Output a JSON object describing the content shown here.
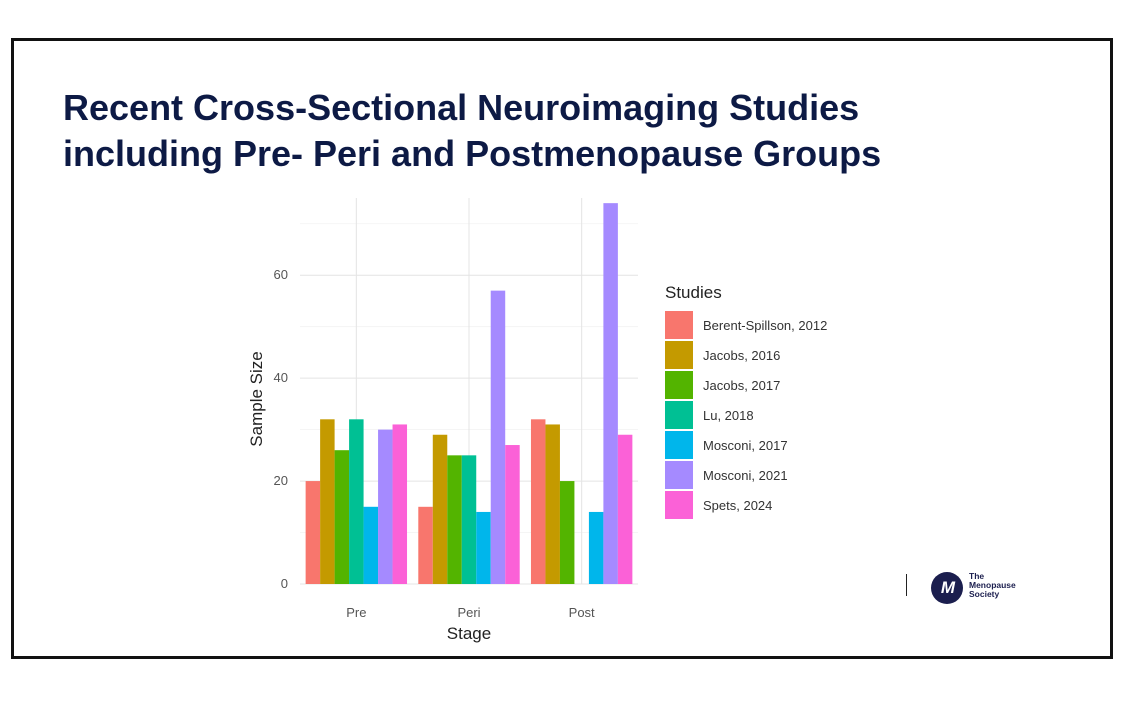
{
  "slide": {
    "title_lines": [
      "Recent Cross-Sectional Neuroimaging Studies",
      "including Pre- Peri and Postmenopause Groups"
    ]
  },
  "brand": {
    "logo_glyph": "M",
    "name_lines": [
      "The",
      "Menopause",
      "Society"
    ]
  },
  "chart_data": {
    "type": "bar",
    "categories": [
      "Pre",
      "Peri",
      "Post"
    ],
    "xlabel": "Stage",
    "ylabel": "Sample Size",
    "ylim": [
      0,
      75
    ],
    "yticks": [
      0,
      20,
      40,
      60
    ],
    "grid": true,
    "legend": {
      "title": "Studies",
      "position": "right"
    },
    "series": [
      {
        "name": "Berent-Spillson, 2012",
        "color": "#f8766d",
        "values": [
          20,
          15,
          32
        ]
      },
      {
        "name": "Jacobs, 2016",
        "color": "#c49a00",
        "values": [
          32,
          29,
          31
        ]
      },
      {
        "name": "Jacobs, 2017",
        "color": "#53b400",
        "values": [
          26,
          25,
          20
        ]
      },
      {
        "name": "Lu, 2018",
        "color": "#00c094",
        "values": [
          32,
          25,
          null
        ]
      },
      {
        "name": "Mosconi, 2017",
        "color": "#00b6eb",
        "values": [
          15,
          14,
          14
        ]
      },
      {
        "name": "Mosconi, 2021",
        "color": "#a58aff",
        "values": [
          30,
          57,
          74
        ]
      },
      {
        "name": "Spets, 2024",
        "color": "#fb61d7",
        "values": [
          31,
          27,
          29
        ]
      }
    ]
  }
}
